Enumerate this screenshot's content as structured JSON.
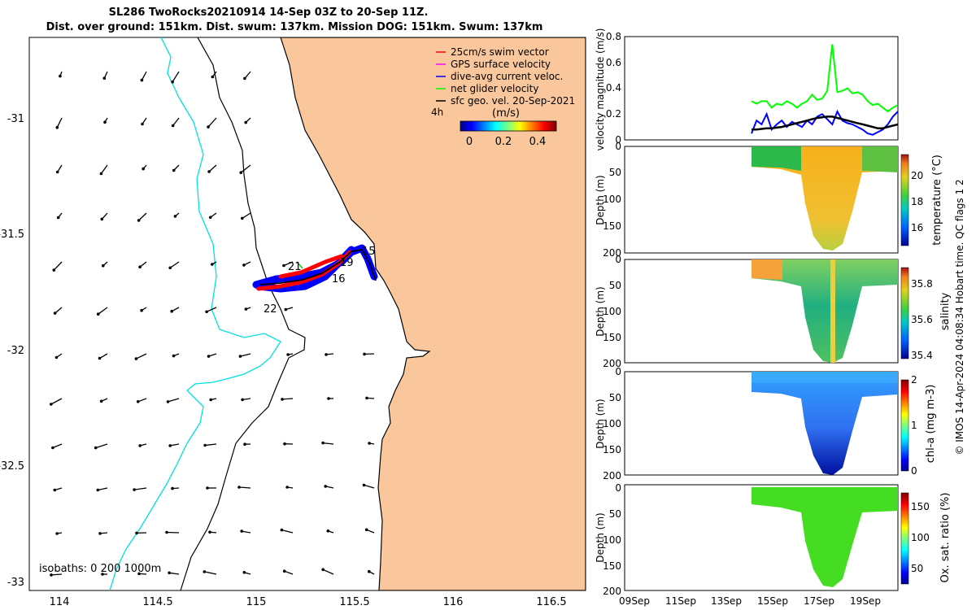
{
  "header": {
    "title_line1": "SL286 TwoRocks20210914 14-Sep 03Z to 20-Sep 11Z.",
    "title_line2": "Dist. over ground: 151km. Dist. swum: 137km. Mission DOG: 151km. Swum: 137km"
  },
  "map": {
    "lon_ticks": [
      "114",
      "114.5",
      "115",
      "115.5",
      "116",
      "116.5"
    ],
    "lat_ticks": [
      "-31",
      "-31.5",
      "-32",
      "-32.5",
      "-33"
    ],
    "isobaths_label": "isobaths: 0   200  1000m",
    "legend": [
      {
        "label": "25cm/s swim vector",
        "color": "#ff0000"
      },
      {
        "label": "GPS surface velocity",
        "color": "#ff00ff"
      },
      {
        "label": "dive-avg current veloc.",
        "color": "#0000ff"
      },
      {
        "label": "net glider velocity",
        "color": "#00ff00"
      },
      {
        "label": "sfc geo. vel. 20-Sep-2021",
        "color": "#000000"
      }
    ],
    "hours_label": "4h",
    "colorbar_title": "(m/s)",
    "colorbar_ticks": [
      "0",
      "0.2",
      "0.4"
    ],
    "day_labels": [
      "15",
      "16",
      "19",
      "21",
      "22"
    ],
    "land_color": "#f9c79b"
  },
  "chart_data": [
    {
      "type": "line",
      "title": "",
      "ylabel": "velocity magnitude (m/s)",
      "ylim": [
        0,
        0.8
      ],
      "yticks": [
        "0",
        "0.2",
        "0.4",
        "0.6",
        "0.8"
      ],
      "x_start_day": 14.3,
      "x_end_day": 20.5,
      "series": [
        {
          "name": "net glider velocity",
          "color": "#00ff00",
          "values": [
            0.3,
            0.28,
            0.3,
            0.3,
            0.25,
            0.28,
            0.27,
            0.3,
            0.28,
            0.25,
            0.28,
            0.3,
            0.35,
            0.31,
            0.32,
            0.38,
            0.74,
            0.37,
            0.38,
            0.4,
            0.36,
            0.37,
            0.35,
            0.3,
            0.27,
            0.28,
            0.25,
            0.22,
            0.25,
            0.27
          ]
        },
        {
          "name": "dive-avg current veloc.",
          "color": "#0000ff",
          "values": [
            0.05,
            0.15,
            0.12,
            0.2,
            0.08,
            0.12,
            0.15,
            0.1,
            0.14,
            0.12,
            0.1,
            0.15,
            0.12,
            0.18,
            0.2,
            0.16,
            0.12,
            0.22,
            0.15,
            0.13,
            0.12,
            0.1,
            0.08,
            0.05,
            0.04,
            0.06,
            0.08,
            0.12,
            0.18,
            0.22
          ]
        },
        {
          "name": "sfc geo. vel.",
          "color": "#000000",
          "values": [
            0.08,
            0.08,
            0.085,
            0.09,
            0.09,
            0.095,
            0.1,
            0.11,
            0.12,
            0.13,
            0.14,
            0.15,
            0.16,
            0.17,
            0.175,
            0.18,
            0.18,
            0.17,
            0.16,
            0.15,
            0.14,
            0.13,
            0.12,
            0.11,
            0.1,
            0.09,
            0.09,
            0.1,
            0.11,
            0.12
          ]
        }
      ]
    },
    {
      "type": "heatmap",
      "ylabel": "Depth (m)",
      "yticks": [
        "0",
        "50",
        "100",
        "150",
        "200"
      ],
      "colorbar_label": "temperature (°C)",
      "cbar_ticks": [
        "20",
        "18",
        "16"
      ],
      "cbar_range": [
        14.5,
        21.5
      ]
    },
    {
      "type": "heatmap",
      "ylabel": "Depth (m)",
      "yticks": [
        "0",
        "50",
        "100",
        "150",
        "200"
      ],
      "colorbar_label": "salinity",
      "cbar_ticks": [
        "35.8",
        "35.6",
        "35.4"
      ],
      "cbar_range": [
        35.33,
        35.9
      ]
    },
    {
      "type": "heatmap",
      "ylabel": "Depth (m)",
      "yticks": [
        "0",
        "50",
        "100",
        "150",
        "200"
      ],
      "colorbar_label": "chl-a (mg m-3)",
      "cbar_ticks": [
        "2",
        "1",
        "0"
      ],
      "cbar_range": [
        0,
        2
      ]
    },
    {
      "type": "heatmap",
      "ylabel": "Depth (m)",
      "yticks": [
        "0",
        "50",
        "100",
        "150",
        "200"
      ],
      "colorbar_label": "Ox. sat. ratio (%)",
      "cbar_ticks": [
        "150",
        "100",
        "50"
      ],
      "cbar_range": [
        25,
        175
      ]
    }
  ],
  "time_axis": {
    "labels": [
      "09Sep",
      "11Sep",
      "13Sep",
      "15Sep",
      "17Sep",
      "19Sep"
    ]
  },
  "footer": {
    "credit": "© IMOS 14-Apr-2024 04:08:34 Hobart time. QC flags 1  2"
  }
}
